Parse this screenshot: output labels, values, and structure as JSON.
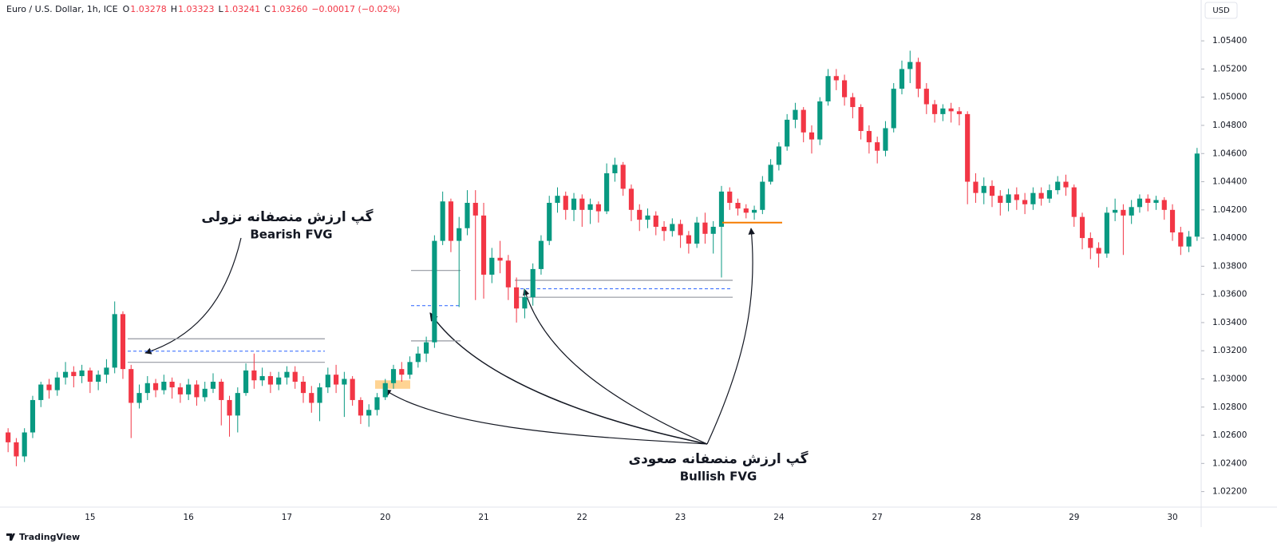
{
  "chart_data": {
    "type": "candlestick",
    "title": "Euro / U.S. Dollar, 1h, ICE",
    "ohlc_legend": [
      {
        "label": "O",
        "value": "1.03278"
      },
      {
        "label": "H",
        "value": "1.03323"
      },
      {
        "label": "L",
        "value": "1.03241"
      },
      {
        "label": "C",
        "value": "1.03260"
      }
    ],
    "change": "−0.00017 (−0.02%)",
    "currency": "USD",
    "up_color": "#089981",
    "down_color": "#f23645",
    "ylim": [
      1.0209,
      1.0569
    ],
    "yticks": [
      {
        "value": 1.022,
        "label": "1.02200"
      },
      {
        "value": 1.024,
        "label": "1.02400"
      },
      {
        "value": 1.026,
        "label": "1.02600"
      },
      {
        "value": 1.028,
        "label": "1.02800"
      },
      {
        "value": 1.03,
        "label": "1.03000"
      },
      {
        "value": 1.032,
        "label": "1.03200"
      },
      {
        "value": 1.034,
        "label": "1.03400"
      },
      {
        "value": 1.036,
        "label": "1.03600"
      },
      {
        "value": 1.038,
        "label": "1.03800"
      },
      {
        "value": 1.04,
        "label": "1.04000"
      },
      {
        "value": 1.042,
        "label": "1.04200"
      },
      {
        "value": 1.044,
        "label": "1.04400"
      },
      {
        "value": 1.046,
        "label": "1.04600"
      },
      {
        "value": 1.048,
        "label": "1.04800"
      },
      {
        "value": 1.05,
        "label": "1.05000"
      },
      {
        "value": 1.052,
        "label": "1.05200"
      },
      {
        "value": 1.054,
        "label": "1.05400"
      }
    ],
    "categories": [
      null,
      null,
      null,
      null,
      null,
      null,
      null,
      null,
      null,
      null,
      "15",
      null,
      null,
      null,
      null,
      null,
      null,
      null,
      null,
      null,
      null,
      null,
      "16",
      null,
      null,
      null,
      null,
      null,
      null,
      null,
      null,
      null,
      null,
      null,
      "17",
      null,
      null,
      null,
      null,
      null,
      null,
      null,
      null,
      null,
      null,
      null,
      "20",
      null,
      null,
      null,
      null,
      null,
      null,
      null,
      null,
      null,
      null,
      null,
      "21",
      null,
      null,
      null,
      null,
      null,
      null,
      null,
      null,
      null,
      null,
      null,
      "22",
      null,
      null,
      null,
      null,
      null,
      null,
      null,
      null,
      null,
      null,
      null,
      "23",
      null,
      null,
      null,
      null,
      null,
      null,
      null,
      null,
      null,
      null,
      null,
      "24",
      null,
      null,
      null,
      null,
      null,
      null,
      null,
      null,
      null,
      null,
      null,
      "27",
      null,
      null,
      null,
      null,
      null,
      null,
      null,
      null,
      null,
      null,
      null,
      "28",
      null,
      null,
      null,
      null,
      null,
      null,
      null,
      null,
      null,
      null,
      null,
      "29",
      null,
      null,
      null,
      null,
      null,
      null,
      null,
      null,
      null,
      null,
      null,
      "30",
      null,
      null,
      null
    ],
    "candles": [
      [
        1.0262,
        1.0265,
        1.0248,
        1.0255
      ],
      [
        1.0255,
        1.0258,
        1.0238,
        1.0245
      ],
      [
        1.0245,
        1.0265,
        1.0241,
        1.0262
      ],
      [
        1.0262,
        1.0288,
        1.0258,
        1.0285
      ],
      [
        1.0285,
        1.0298,
        1.028,
        1.0296
      ],
      [
        1.0296,
        1.03,
        1.0286,
        1.0292
      ],
      [
        1.0292,
        1.0305,
        1.0288,
        1.0301
      ],
      [
        1.0301,
        1.0312,
        1.0296,
        1.0305
      ],
      [
        1.0305,
        1.0309,
        1.0294,
        1.0302
      ],
      [
        1.0302,
        1.031,
        1.0297,
        1.0306
      ],
      [
        1.0306,
        1.0308,
        1.029,
        1.0298
      ],
      [
        1.0298,
        1.0306,
        1.0292,
        1.0303
      ],
      [
        1.0303,
        1.0314,
        1.0297,
        1.0308
      ],
      [
        1.0308,
        1.0355,
        1.0304,
        1.0346
      ],
      [
        1.0346,
        1.0348,
        1.03,
        1.0307
      ],
      [
        1.0307,
        1.031,
        1.0258,
        1.0283
      ],
      [
        1.0283,
        1.0296,
        1.0279,
        1.029
      ],
      [
        1.029,
        1.0302,
        1.0285,
        1.0297
      ],
      [
        1.0297,
        1.03,
        1.0287,
        1.0292
      ],
      [
        1.0292,
        1.0303,
        1.0289,
        1.0298
      ],
      [
        1.0298,
        1.0301,
        1.0286,
        1.0294
      ],
      [
        1.0294,
        1.0297,
        1.0283,
        1.0289
      ],
      [
        1.0289,
        1.03,
        1.0285,
        1.0296
      ],
      [
        1.0296,
        1.0299,
        1.0281,
        1.0287
      ],
      [
        1.0287,
        1.0298,
        1.0284,
        1.0293
      ],
      [
        1.0293,
        1.0304,
        1.029,
        1.0298
      ],
      [
        1.0298,
        1.03,
        1.0267,
        1.0285
      ],
      [
        1.0285,
        1.0288,
        1.0259,
        1.0274
      ],
      [
        1.0274,
        1.0294,
        1.0262,
        1.029
      ],
      [
        1.029,
        1.0311,
        1.0288,
        1.0306
      ],
      [
        1.0306,
        1.0318,
        1.0293,
        1.0299
      ],
      [
        1.0299,
        1.0308,
        1.0295,
        1.0302
      ],
      [
        1.0302,
        1.0305,
        1.029,
        1.0296
      ],
      [
        1.0296,
        1.0305,
        1.0292,
        1.0301
      ],
      [
        1.0301,
        1.0309,
        1.0296,
        1.0305
      ],
      [
        1.0305,
        1.0309,
        1.0293,
        1.0298
      ],
      [
        1.0298,
        1.0302,
        1.0283,
        1.029
      ],
      [
        1.029,
        1.0295,
        1.0276,
        1.0283
      ],
      [
        1.0283,
        1.0297,
        1.027,
        1.0294
      ],
      [
        1.0294,
        1.0308,
        1.029,
        1.0303
      ],
      [
        1.0303,
        1.031,
        1.029,
        1.0296
      ],
      [
        1.0296,
        1.0305,
        1.0273,
        1.03
      ],
      [
        1.03,
        1.0302,
        1.0281,
        1.0285
      ],
      [
        1.0285,
        1.0287,
        1.0268,
        1.0274
      ],
      [
        1.0274,
        1.0282,
        1.0266,
        1.0278
      ],
      [
        1.0278,
        1.029,
        1.0274,
        1.0287
      ],
      [
        1.0287,
        1.03,
        1.0285,
        1.0297
      ],
      [
        1.0297,
        1.031,
        1.0293,
        1.0307
      ],
      [
        1.0307,
        1.0312,
        1.0298,
        1.0303
      ],
      [
        1.0303,
        1.0316,
        1.03,
        1.0312
      ],
      [
        1.0312,
        1.0323,
        1.0308,
        1.0318
      ],
      [
        1.0318,
        1.033,
        1.0312,
        1.0326
      ],
      [
        1.0326,
        1.0402,
        1.0322,
        1.0398
      ],
      [
        1.0398,
        1.0433,
        1.0395,
        1.0426
      ],
      [
        1.0426,
        1.0428,
        1.039,
        1.0398
      ],
      [
        1.0398,
        1.0415,
        1.0351,
        1.0407
      ],
      [
        1.0407,
        1.0434,
        1.0402,
        1.0425
      ],
      [
        1.0425,
        1.0434,
        1.0356,
        1.0416
      ],
      [
        1.0416,
        1.0425,
        1.0357,
        1.0374
      ],
      [
        1.0374,
        1.0393,
        1.0368,
        1.0386
      ],
      [
        1.0386,
        1.0398,
        1.0375,
        1.0384
      ],
      [
        1.0384,
        1.0388,
        1.0356,
        1.0365
      ],
      [
        1.0365,
        1.0372,
        1.034,
        1.035
      ],
      [
        1.035,
        1.0364,
        1.0343,
        1.0358
      ],
      [
        1.0358,
        1.0382,
        1.0352,
        1.0378
      ],
      [
        1.0378,
        1.0402,
        1.0374,
        1.0398
      ],
      [
        1.0398,
        1.043,
        1.0395,
        1.0425
      ],
      [
        1.0425,
        1.0436,
        1.0418,
        1.043
      ],
      [
        1.043,
        1.0433,
        1.0413,
        1.042
      ],
      [
        1.042,
        1.0432,
        1.0412,
        1.0428
      ],
      [
        1.0428,
        1.0431,
        1.0408,
        1.042
      ],
      [
        1.042,
        1.0428,
        1.041,
        1.0424
      ],
      [
        1.0424,
        1.0426,
        1.0411,
        1.0419
      ],
      [
        1.0419,
        1.0453,
        1.0417,
        1.0446
      ],
      [
        1.0446,
        1.0457,
        1.044,
        1.0452
      ],
      [
        1.0452,
        1.0454,
        1.043,
        1.0435
      ],
      [
        1.0435,
        1.0438,
        1.0412,
        1.042
      ],
      [
        1.042,
        1.0424,
        1.0405,
        1.0413
      ],
      [
        1.0413,
        1.0421,
        1.0407,
        1.0416
      ],
      [
        1.0416,
        1.0419,
        1.0402,
        1.0408
      ],
      [
        1.0408,
        1.0412,
        1.0398,
        1.0405
      ],
      [
        1.0405,
        1.0414,
        1.0401,
        1.041
      ],
      [
        1.041,
        1.0413,
        1.0393,
        1.0402
      ],
      [
        1.0402,
        1.0405,
        1.0389,
        1.0396
      ],
      [
        1.0396,
        1.0415,
        1.0393,
        1.0411
      ],
      [
        1.0411,
        1.0418,
        1.0396,
        1.0403
      ],
      [
        1.0403,
        1.0412,
        1.0389,
        1.0408
      ],
      [
        1.0408,
        1.0437,
        1.0372,
        1.0433
      ],
      [
        1.0433,
        1.0436,
        1.042,
        1.0425
      ],
      [
        1.0425,
        1.0428,
        1.0416,
        1.0421
      ],
      [
        1.0421,
        1.0424,
        1.0414,
        1.0418
      ],
      [
        1.0418,
        1.0423,
        1.0413,
        1.042
      ],
      [
        1.042,
        1.0444,
        1.0417,
        1.044
      ],
      [
        1.044,
        1.0456,
        1.0438,
        1.0452
      ],
      [
        1.0452,
        1.0468,
        1.0448,
        1.0465
      ],
      [
        1.0465,
        1.0488,
        1.0462,
        1.0484
      ],
      [
        1.0484,
        1.0496,
        1.0478,
        1.0491
      ],
      [
        1.0491,
        1.0493,
        1.0468,
        1.0475
      ],
      [
        1.0475,
        1.048,
        1.046,
        1.047
      ],
      [
        1.047,
        1.05,
        1.0466,
        1.0497
      ],
      [
        1.0497,
        1.052,
        1.0494,
        1.0515
      ],
      [
        1.0515,
        1.052,
        1.0505,
        1.0512
      ],
      [
        1.0512,
        1.0516,
        1.0494,
        1.05
      ],
      [
        1.05,
        1.0503,
        1.0485,
        1.0493
      ],
      [
        1.0493,
        1.0495,
        1.047,
        1.0476
      ],
      [
        1.0476,
        1.048,
        1.046,
        1.0468
      ],
      [
        1.0468,
        1.0472,
        1.0453,
        1.0462
      ],
      [
        1.0462,
        1.0483,
        1.0458,
        1.0478
      ],
      [
        1.0478,
        1.051,
        1.0475,
        1.0506
      ],
      [
        1.0506,
        1.0526,
        1.0502,
        1.052
      ],
      [
        1.052,
        1.0533,
        1.051,
        1.0525
      ],
      [
        1.0525,
        1.0528,
        1.05,
        1.0506
      ],
      [
        1.0506,
        1.051,
        1.0488,
        1.0495
      ],
      [
        1.0495,
        1.0498,
        1.0482,
        1.0488
      ],
      [
        1.0488,
        1.0495,
        1.0483,
        1.0492
      ],
      [
        1.0492,
        1.0496,
        1.0482,
        1.049
      ],
      [
        1.049,
        1.0493,
        1.048,
        1.0488
      ],
      [
        1.0488,
        1.049,
        1.0424,
        1.044
      ],
      [
        1.044,
        1.0446,
        1.0425,
        1.0432
      ],
      [
        1.0432,
        1.0443,
        1.0424,
        1.0437
      ],
      [
        1.0437,
        1.0441,
        1.0422,
        1.043
      ],
      [
        1.043,
        1.0434,
        1.0416,
        1.0425
      ],
      [
        1.0425,
        1.0435,
        1.0419,
        1.0431
      ],
      [
        1.0431,
        1.0436,
        1.042,
        1.0427
      ],
      [
        1.0427,
        1.0432,
        1.0417,
        1.0424
      ],
      [
        1.0424,
        1.0436,
        1.042,
        1.0432
      ],
      [
        1.0432,
        1.0436,
        1.0423,
        1.0428
      ],
      [
        1.0428,
        1.0438,
        1.0425,
        1.0434
      ],
      [
        1.0434,
        1.0444,
        1.0431,
        1.044
      ],
      [
        1.044,
        1.0445,
        1.043,
        1.0436
      ],
      [
        1.0436,
        1.0438,
        1.0408,
        1.0415
      ],
      [
        1.0415,
        1.0418,
        1.0392,
        1.04
      ],
      [
        1.04,
        1.0404,
        1.0385,
        1.0393
      ],
      [
        1.0393,
        1.0397,
        1.0379,
        1.0389
      ],
      [
        1.0389,
        1.0422,
        1.0386,
        1.0418
      ],
      [
        1.0418,
        1.0428,
        1.0412,
        1.042
      ],
      [
        1.042,
        1.0424,
        1.0388,
        1.0416
      ],
      [
        1.0416,
        1.0427,
        1.041,
        1.0422
      ],
      [
        1.0422,
        1.0431,
        1.0418,
        1.0428
      ],
      [
        1.0428,
        1.0431,
        1.0419,
        1.0425
      ],
      [
        1.0425,
        1.043,
        1.042,
        1.0427
      ],
      [
        1.0427,
        1.0429,
        1.0413,
        1.042
      ],
      [
        1.042,
        1.0424,
        1.0398,
        1.0404
      ],
      [
        1.0404,
        1.0408,
        1.0388,
        1.0394
      ],
      [
        1.0394,
        1.0405,
        1.039,
        1.0401
      ],
      [
        1.0401,
        1.0464,
        1.0398,
        1.046
      ]
    ],
    "zones": [
      {
        "top": 1.03285,
        "mid": 1.03197,
        "bottom": 1.03118
      },
      {
        "top": 1.0377,
        "mid": 1.0352,
        "bottom": 1.0327
      },
      {
        "top": 1.037,
        "mid": 1.0364,
        "bottom": 1.0358
      }
    ],
    "levels": [
      1.0411
    ],
    "boxes": [
      {
        "top": 1.0299,
        "bottom": 1.0293
      }
    ],
    "annotations": [
      {
        "text": "گپ ارزش منصفانه نزولی",
        "subtext": "Bearish FVG"
      },
      {
        "text": "گپ ارزش منصفانه صعودی",
        "subtext": "Bullish FVG"
      }
    ]
  },
  "footer": {
    "brand": "TradingView"
  }
}
